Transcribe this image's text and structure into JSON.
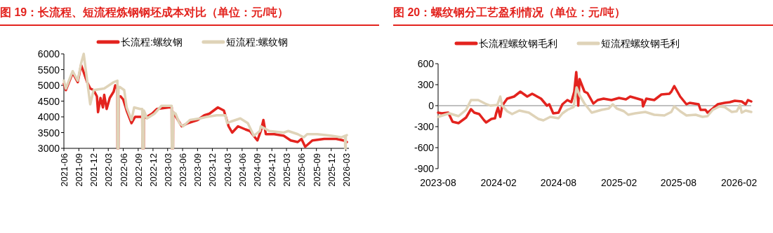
{
  "chart_data": [
    {
      "type": "line",
      "title": "图 19：长流程、短流程炼钢钢坯成本对比（单位：元/吨）",
      "legend": "top",
      "xlim": [
        "2021-06-01",
        "2026-03-20"
      ],
      "ylim": [
        3000,
        6000
      ],
      "yticks": [
        3000,
        3500,
        4000,
        4500,
        5000,
        5500,
        6000
      ],
      "xticks": [
        "2021-06",
        "2021-09",
        "2021-12",
        "2022-03",
        "2022-06",
        "2022-09",
        "2022-12",
        "2023-03",
        "2023-06",
        "2023-09",
        "2023-12",
        "2024-03",
        "2024-06",
        "2024-09",
        "2024-12",
        "2025-03",
        "2025-06",
        "2025-09",
        "2025-12",
        "2026-03"
      ],
      "series": [
        {
          "name": "长流程:螺纹钢",
          "color": "#e3231e",
          "x": [
            "2021-06-01",
            "2021-06-13",
            "2021-07-25",
            "2021-08-25",
            "2021-09-15",
            "2021-10-22",
            "2021-11-10",
            "2021-12-01",
            "2021-12-21",
            "2021-12-28",
            "2022-01-12",
            "2022-01-27",
            "2022-02-04",
            "2022-02-19",
            "2022-03-10",
            "2022-04-03",
            "2022-04-13",
            "2022-04-26",
            "2022-04-27",
            "2022-05-02",
            "2022-05-03",
            "2022-05-16",
            "2022-06-01",
            "2022-06-22",
            "2022-07-22",
            "2022-08-13",
            "2022-09-26",
            "2022-09-27",
            "2022-10-05",
            "2022-10-06",
            "2022-11-25",
            "2022-12-25",
            "2023-03-07",
            "2023-03-26",
            "2023-03-27",
            "2023-04-03",
            "2023-04-04",
            "2023-05-27",
            "2023-07-03",
            "2023-09-01",
            "2023-10-13",
            "2023-11-13",
            "2024-01-04",
            "2024-02-10",
            "2024-03-10",
            "2024-04-01",
            "2024-05-07",
            "2024-06-22",
            "2024-07-19",
            "2024-09-03",
            "2024-09-24",
            "2024-10-10",
            "2024-10-25",
            "2024-12-15",
            "2025-02-12",
            "2025-03-27",
            "2025-05-09",
            "2025-06-01",
            "2025-06-24",
            "2025-08-07",
            "2025-10-19",
            "2026-01-01",
            "2026-02-15",
            "2026-03-07"
          ],
          "values": [
            5050,
            4850,
            5400,
            5100,
            5650,
            5100,
            4900,
            4850,
            4650,
            4150,
            4600,
            4300,
            4700,
            4250,
            4600,
            4800,
            5000,
            4900,
            3000,
            3000,
            4650,
            4650,
            4550,
            4200,
            3800,
            4000,
            4000,
            3000,
            3000,
            3950,
            4100,
            4250,
            4300,
            4300,
            3000,
            3000,
            4150,
            3700,
            3800,
            3900,
            4050,
            4100,
            4300,
            4200,
            3700,
            3500,
            3700,
            3600,
            3550,
            3250,
            3550,
            3900,
            3450,
            3450,
            3400,
            3250,
            3200,
            3300,
            3050,
            3250,
            3300,
            3300,
            3250,
            3200
          ]
        },
        {
          "name": "短流程:螺纹钢",
          "color": "#dfd3b8",
          "x": [
            "2021-06-01",
            "2021-06-13",
            "2021-07-25",
            "2021-08-25",
            "2021-09-15",
            "2021-10-01",
            "2021-10-22",
            "2021-11-10",
            "2021-12-01",
            "2022-02-04",
            "2022-04-03",
            "2022-04-26",
            "2022-04-27",
            "2022-05-02",
            "2022-05-03",
            "2022-05-10",
            "2022-06-07",
            "2022-06-22",
            "2022-07-22",
            "2022-08-07",
            "2022-09-13",
            "2022-09-26",
            "2022-09-27",
            "2022-10-05",
            "2022-10-06",
            "2022-10-25",
            "2022-12-10",
            "2023-01-22",
            "2023-03-07",
            "2023-03-26",
            "2023-03-27",
            "2023-04-03",
            "2023-04-04",
            "2023-04-19",
            "2023-05-12",
            "2023-06-04",
            "2023-07-16",
            "2023-09-16",
            "2023-10-28",
            "2023-12-28",
            "2024-02-19",
            "2024-03-01",
            "2024-03-24",
            "2024-05-21",
            "2024-07-06",
            "2024-08-12",
            "2024-09-18",
            "2024-09-24",
            "2024-11-15",
            "2025-02-12",
            "2025-03-12",
            "2025-05-09",
            "2025-06-15",
            "2025-07-06",
            "2025-09-06",
            "2025-12-03",
            "2026-02-01",
            "2026-02-24",
            "2026-02-25",
            "2026-02-28",
            "2026-03-01",
            "2026-03-07"
          ],
          "values": [
            5150,
            4900,
            5450,
            5150,
            5700,
            6000,
            5150,
            4400,
            4850,
            4900,
            5100,
            5150,
            3000,
            3000,
            4950,
            4950,
            4850,
            4300,
            3900,
            4300,
            4250,
            4250,
            3000,
            3000,
            4200,
            3950,
            4100,
            4350,
            4350,
            4350,
            3000,
            3000,
            4150,
            4100,
            3800,
            3700,
            3900,
            3950,
            4000,
            4050,
            4050,
            3800,
            3850,
            3950,
            3800,
            3400,
            3550,
            3700,
            3550,
            3500,
            3550,
            3450,
            3350,
            3450,
            3450,
            3400,
            3350,
            3400,
            3000,
            3000,
            3400,
            3420
          ]
        }
      ]
    },
    {
      "type": "line",
      "title": "图 20：螺纹钢分工艺盈利情况（单位：元/吨）",
      "legend": "top",
      "xlim": [
        "2023-08-01",
        "2026-03-10"
      ],
      "ylim": [
        -900,
        600
      ],
      "yticks": [
        -900,
        -600,
        -300,
        0,
        300,
        600
      ],
      "xticks": [
        "2023-08",
        "2024-02",
        "2024-08",
        "2025-02",
        "2025-08",
        "2026-02"
      ],
      "ref_lines": [
        {
          "axis": "y",
          "value": 0,
          "color": "#808080"
        }
      ],
      "series": [
        {
          "name": "长流程螺纹钢毛利",
          "color": "#e3231e",
          "x": [
            "2023-08-01",
            "2023-08-12",
            "2023-09-01",
            "2023-09-14",
            "2023-10-02",
            "2023-10-25",
            "2023-11-09",
            "2023-11-19",
            "2023-12-04",
            "2023-12-19",
            "2023-12-25",
            "2024-01-10",
            "2024-01-21",
            "2024-01-25",
            "2024-01-30",
            "2024-02-06",
            "2024-02-12",
            "2024-02-27",
            "2024-03-19",
            "2024-04-07",
            "2024-04-28",
            "2024-05-13",
            "2024-06-09",
            "2024-06-27",
            "2024-07-04",
            "2024-07-16",
            "2024-08-01",
            "2024-08-13",
            "2024-08-28",
            "2024-09-09",
            "2024-09-18",
            "2024-09-24",
            "2024-09-27",
            "2024-09-30",
            "2024-10-04",
            "2024-10-19",
            "2024-10-28",
            "2024-11-15",
            "2024-11-28",
            "2024-12-16",
            "2025-01-09",
            "2025-02-01",
            "2025-02-22",
            "2025-03-07",
            "2025-03-22",
            "2025-04-13",
            "2025-04-15",
            "2025-04-25",
            "2025-05-19",
            "2025-06-10",
            "2025-07-04",
            "2025-07-10",
            "2025-07-19",
            "2025-08-06",
            "2025-08-25",
            "2025-09-04",
            "2025-10-01",
            "2025-10-07",
            "2025-10-22",
            "2025-10-28",
            "2025-11-13",
            "2025-11-28",
            "2025-12-19",
            "2026-01-04",
            "2026-01-19",
            "2026-02-09",
            "2026-02-21",
            "2026-02-28",
            "2026-03-10"
          ],
          "values": [
            -100,
            -110,
            -100,
            -230,
            -250,
            -170,
            -50,
            -100,
            -120,
            -210,
            -240,
            -190,
            -180,
            -100,
            -30,
            -160,
            0,
            100,
            130,
            200,
            130,
            170,
            100,
            0,
            20,
            -110,
            -100,
            20,
            80,
            50,
            200,
            480,
            300,
            0,
            380,
            200,
            180,
            30,
            80,
            100,
            80,
            110,
            90,
            130,
            110,
            80,
            -10,
            100,
            80,
            160,
            170,
            200,
            280,
            130,
            20,
            40,
            20,
            -60,
            -60,
            -100,
            -40,
            20,
            40,
            50,
            70,
            60,
            20,
            80,
            60
          ]
        },
        {
          "name": "短流程螺纹钢毛利",
          "color": "#dfd3b8",
          "x": [
            "2023-08-01",
            "2023-09-04",
            "2023-10-02",
            "2023-10-25",
            "2023-11-09",
            "2023-12-01",
            "2023-12-22",
            "2024-01-07",
            "2024-01-28",
            "2024-02-06",
            "2024-02-12",
            "2024-02-27",
            "2024-03-13",
            "2024-04-04",
            "2024-05-03",
            "2024-06-01",
            "2024-06-16",
            "2024-07-07",
            "2024-08-01",
            "2024-08-13",
            "2024-08-28",
            "2024-09-16",
            "2024-09-25",
            "2024-10-04",
            "2024-10-19",
            "2024-11-10",
            "2024-12-10",
            "2025-01-01",
            "2025-01-13",
            "2025-01-25",
            "2025-02-16",
            "2025-03-01",
            "2025-03-22",
            "2025-04-22",
            "2025-05-19",
            "2025-06-19",
            "2025-07-10",
            "2025-07-19",
            "2025-08-06",
            "2025-08-25",
            "2025-09-22",
            "2025-10-13",
            "2025-10-28",
            "2025-11-13",
            "2025-12-04",
            "2025-12-19",
            "2026-01-10",
            "2026-01-25",
            "2026-02-04",
            "2026-02-09",
            "2026-02-21",
            "2026-03-10"
          ],
          "values": [
            -160,
            -110,
            -150,
            -60,
            80,
            80,
            30,
            0,
            10,
            130,
            0,
            -80,
            -120,
            -70,
            -100,
            -190,
            -210,
            -160,
            -180,
            -110,
            -60,
            -20,
            260,
            150,
            30,
            -100,
            -60,
            -40,
            20,
            -40,
            -80,
            -130,
            -110,
            -90,
            -130,
            -140,
            -90,
            -10,
            -80,
            -140,
            -130,
            -160,
            -150,
            -60,
            -10,
            -20,
            -90,
            -80,
            10,
            -100,
            -70,
            -90
          ]
        }
      ]
    }
  ]
}
